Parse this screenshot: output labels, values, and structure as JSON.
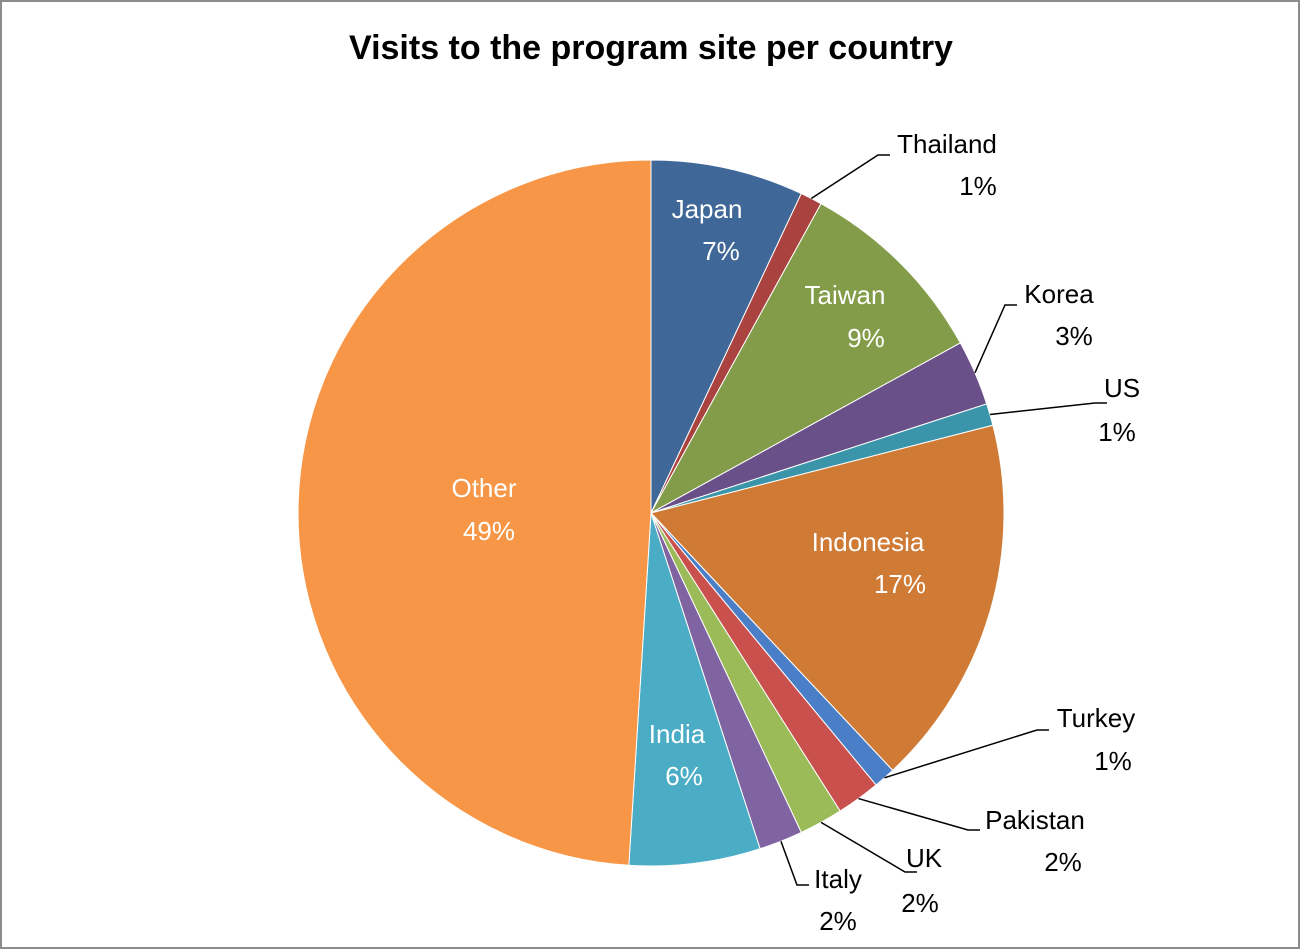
{
  "chart_data": {
    "type": "pie",
    "title": "Visits to the program site per country",
    "categories": [
      "Japan",
      "Thailand",
      "Taiwan",
      "Korea",
      "US",
      "Indonesia",
      "Turkey",
      "Pakistan",
      "UK",
      "Italy",
      "India",
      "Other"
    ],
    "values": [
      7,
      1,
      9,
      3,
      1,
      17,
      1,
      2,
      2,
      2,
      6,
      49
    ],
    "value_labels": [
      "7%",
      "1%",
      "9%",
      "3%",
      "1%",
      "17%",
      "1%",
      "2%",
      "2%",
      "2%",
      "6%",
      "49%"
    ],
    "colors": [
      "#3f6797",
      "#aa4240",
      "#839c49",
      "#6a5088",
      "#3b95aa",
      "#cf7b35",
      "#4a7fc8",
      "#c9504c",
      "#9bbb59",
      "#8064a2",
      "#4bacc6",
      "#f79646"
    ]
  }
}
